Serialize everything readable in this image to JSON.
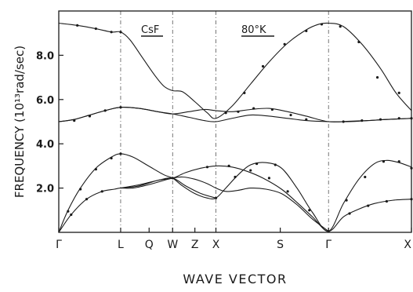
{
  "chart_data": {
    "type": "line",
    "ylabel": "FREQUENCY (10¹³rad/sec)",
    "xlabel": "WAVE VECTOR",
    "annotations": [
      "CsF",
      "80°K"
    ],
    "ylim": [
      0,
      10
    ],
    "y_ticks": [
      2.0,
      4.0,
      6.0,
      8.0
    ],
    "y_tick_labels": [
      "2.0",
      "4.0",
      "6.0",
      "8.0"
    ],
    "x_ticks": [
      {
        "label": "Γ",
        "x": 0
      },
      {
        "label": "L",
        "x": 1.0
      },
      {
        "label": "Q",
        "x": 1.46
      },
      {
        "label": "W",
        "x": 1.84
      },
      {
        "label": "Z",
        "x": 2.2
      },
      {
        "label": "X",
        "x": 2.54
      },
      {
        "label": "S",
        "x": 3.58
      },
      {
        "label": "Γ",
        "x": 4.36
      },
      {
        "label": "X",
        "x": 5.7
      }
    ],
    "symmetry_lines": [
      1.0,
      1.84,
      2.54,
      4.36
    ],
    "xlim": [
      0,
      5.7
    ],
    "grid": false,
    "series": [
      {
        "x": [
          0,
          0.3,
          0.6,
          0.85,
          1.0,
          1.15,
          1.35,
          1.55,
          1.7,
          1.84,
          2.0,
          2.2,
          2.4,
          2.54,
          2.8,
          3.1,
          3.4,
          3.7,
          4.0,
          4.2,
          4.36,
          4.6,
          4.9,
          5.2,
          5.45,
          5.7
        ],
        "values": [
          9.45,
          9.35,
          9.2,
          9.05,
          9.05,
          8.7,
          7.9,
          7.1,
          6.6,
          6.4,
          6.35,
          5.9,
          5.4,
          5.15,
          5.7,
          6.7,
          7.7,
          8.55,
          9.15,
          9.4,
          9.45,
          9.3,
          8.5,
          7.4,
          6.3,
          5.5
        ]
      },
      {
        "x": [
          0,
          0.25,
          0.5,
          0.75,
          1.0,
          1.3,
          1.6,
          1.84,
          2.1,
          2.35,
          2.54,
          2.8,
          3.1,
          3.4,
          3.7,
          4.0,
          4.36,
          4.7,
          5.0,
          5.3,
          5.7
        ],
        "values": [
          5.0,
          5.1,
          5.3,
          5.5,
          5.65,
          5.6,
          5.45,
          5.35,
          5.2,
          5.05,
          5.0,
          5.15,
          5.3,
          5.25,
          5.15,
          5.05,
          5.0,
          5.0,
          5.05,
          5.1,
          5.15
        ]
      },
      {
        "x": [
          0,
          0.25,
          0.5,
          0.75,
          1.0,
          1.3,
          1.6,
          1.84,
          2.1,
          2.35,
          2.54,
          2.8,
          3.1,
          3.4,
          3.7,
          4.0,
          4.36,
          4.7,
          5.0,
          5.3,
          5.7
        ],
        "values": [
          5.0,
          5.1,
          5.3,
          5.5,
          5.65,
          5.6,
          5.45,
          5.35,
          5.45,
          5.55,
          5.5,
          5.45,
          5.55,
          5.6,
          5.45,
          5.25,
          5.0,
          5.02,
          5.05,
          5.1,
          5.15
        ]
      },
      {
        "x": [
          0,
          0.15,
          0.35,
          0.6,
          0.85,
          1.0,
          1.2,
          1.45,
          1.7,
          1.84,
          2.0,
          2.2,
          2.4,
          2.54,
          2.7,
          2.9,
          3.1,
          3.35,
          3.6,
          3.85,
          4.1,
          4.36,
          4.6,
          4.85,
          5.1,
          5.3,
          5.5,
          5.7
        ],
        "values": [
          0,
          1.0,
          2.0,
          2.9,
          3.4,
          3.55,
          3.4,
          3.0,
          2.6,
          2.45,
          2.1,
          1.75,
          1.55,
          1.55,
          2.0,
          2.6,
          3.05,
          3.15,
          2.9,
          2.0,
          0.9,
          0.05,
          1.3,
          2.4,
          3.1,
          3.25,
          3.15,
          2.95
        ]
      },
      {
        "x": [
          0,
          0.2,
          0.45,
          0.7,
          0.9,
          1.0,
          1.2,
          1.45,
          1.7,
          1.84,
          2.0,
          2.2,
          2.4,
          2.54,
          2.7,
          2.9,
          3.1,
          3.35,
          3.6,
          3.85,
          4.1,
          4.36
        ],
        "values": [
          0,
          0.8,
          1.5,
          1.85,
          1.95,
          2.0,
          2.0,
          2.15,
          2.35,
          2.45,
          2.5,
          2.4,
          2.2,
          2.0,
          1.85,
          1.9,
          2.0,
          1.95,
          1.75,
          1.25,
          0.6,
          0.05
        ]
      },
      {
        "x": [
          1.0,
          1.3,
          1.6,
          1.84,
          2.05,
          2.3,
          2.54,
          2.8,
          3.05,
          3.3,
          3.6,
          3.85,
          4.1,
          4.36,
          4.6,
          4.85,
          5.1,
          5.4,
          5.7
        ],
        "values": [
          2.0,
          2.1,
          2.35,
          2.45,
          2.7,
          2.9,
          3.0,
          2.95,
          2.75,
          2.45,
          1.95,
          1.35,
          0.7,
          0.05,
          0.7,
          1.05,
          1.3,
          1.45,
          1.5
        ]
      },
      {
        "x": [
          1.0,
          1.3,
          1.6,
          1.84,
          2.05,
          2.3,
          2.54
        ],
        "values": [
          2.0,
          2.15,
          2.35,
          2.45,
          2.1,
          1.75,
          1.55
        ]
      }
    ],
    "markers": [
      {
        "x": [
          0.3,
          0.6,
          0.85,
          1.0,
          3.0,
          3.3,
          3.65,
          4.0,
          4.25,
          4.55,
          4.85,
          5.15,
          5.5
        ],
        "values": [
          9.35,
          9.2,
          9.05,
          9.05,
          6.3,
          7.5,
          8.5,
          9.1,
          9.4,
          9.3,
          8.6,
          7.0,
          6.3
        ]
      },
      {
        "x": [
          0.25,
          0.5,
          0.75,
          1.0,
          2.7,
          2.9,
          3.15,
          3.45,
          3.75,
          4.0,
          4.6,
          4.9,
          5.2,
          5.5,
          5.7
        ],
        "values": [
          5.05,
          5.25,
          5.5,
          5.65,
          5.4,
          5.45,
          5.6,
          5.55,
          5.3,
          5.1,
          5.0,
          5.05,
          5.1,
          5.15,
          5.15
        ]
      },
      {
        "x": [
          0.15,
          0.35,
          0.6,
          0.85,
          1.0,
          1.84,
          2.54,
          2.85,
          3.2,
          3.5,
          4.36,
          4.65,
          4.95,
          5.25,
          5.5,
          5.7
        ],
        "values": [
          0.95,
          1.95,
          2.85,
          3.35,
          3.55,
          2.45,
          1.55,
          2.5,
          3.1,
          3.05,
          0.05,
          1.45,
          2.5,
          3.2,
          3.2,
          2.9
        ]
      },
      {
        "x": [
          0.2,
          0.45,
          0.7,
          2.4,
          2.75,
          3.1,
          3.4,
          3.7,
          4.05,
          4.7,
          5.0,
          5.3,
          5.7
        ],
        "values": [
          0.8,
          1.5,
          1.85,
          2.95,
          3.0,
          2.8,
          2.45,
          1.85,
          1.0,
          0.85,
          1.2,
          1.4,
          1.5
        ]
      }
    ]
  }
}
